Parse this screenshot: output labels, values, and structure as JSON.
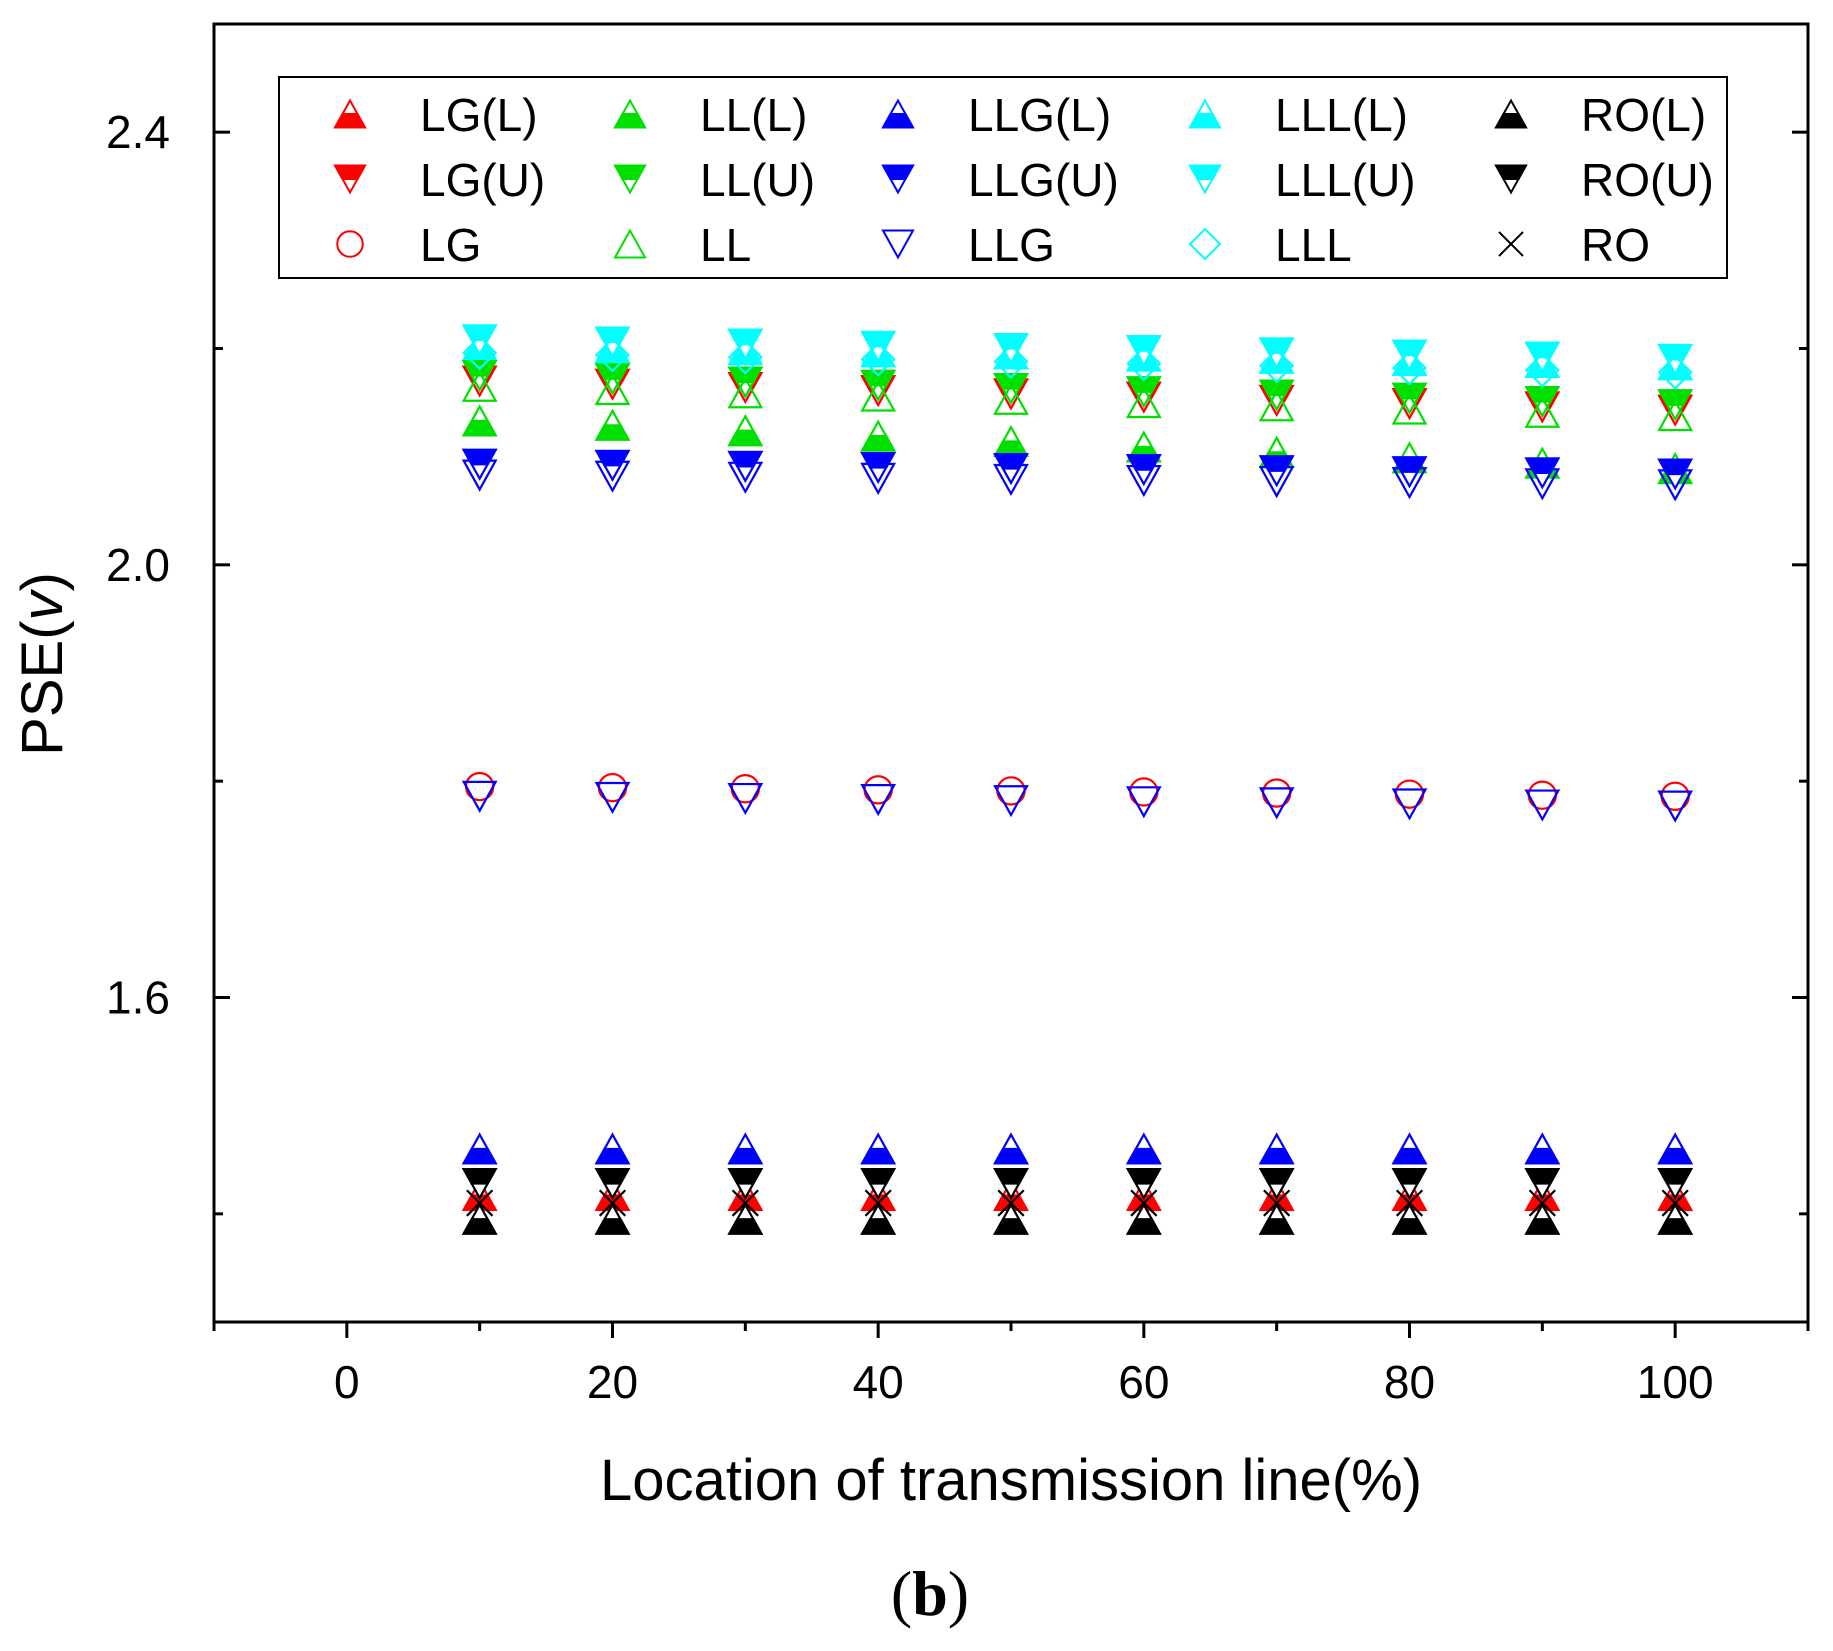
{
  "chart_data": {
    "type": "scatter",
    "title": "",
    "xlabel": "Location of transmission line(%)",
    "ylabel_text": "PSE(",
    "ylabel_italic": "v",
    "ylabel_close": ")",
    "panel_label_open": "(",
    "panel_label_bold": "b",
    "panel_label_close": ")",
    "xlim": [
      -10,
      110
    ],
    "ylim": [
      1.3,
      2.5
    ],
    "xticks": [
      0,
      20,
      40,
      60,
      80,
      100
    ],
    "xtick_labels": [
      "0",
      "20",
      "40",
      "60",
      "80",
      "100"
    ],
    "yticks": [
      1.6,
      2.0,
      2.4
    ],
    "ytick_labels": [
      "1.6",
      "2.0",
      "2.4"
    ],
    "grid": false,
    "legend_position": "top",
    "x": [
      10,
      20,
      30,
      40,
      50,
      60,
      70,
      80,
      90,
      100
    ],
    "series": [
      {
        "name": "LG(L)",
        "marker": "triangle-up-half",
        "color": "#ff0000",
        "values": [
          1.417,
          1.417,
          1.417,
          1.417,
          1.417,
          1.417,
          1.417,
          1.417,
          1.417,
          1.417
        ]
      },
      {
        "name": "LL(L)",
        "marker": "triangle-up-half",
        "color": "#00e000",
        "values": [
          2.133,
          2.129,
          2.124,
          2.119,
          2.114,
          2.109,
          2.104,
          2.099,
          2.094,
          2.089
        ]
      },
      {
        "name": "LLG(L)",
        "marker": "triangle-up-half",
        "color": "#0000ff",
        "values": [
          1.46,
          1.46,
          1.46,
          1.46,
          1.46,
          1.46,
          1.46,
          1.46,
          1.46,
          1.46
        ]
      },
      {
        "name": "LLL(L)",
        "marker": "triangle-up-half",
        "color": "#00ffff",
        "values": [
          2.203,
          2.201,
          2.199,
          2.197,
          2.195,
          2.193,
          2.191,
          2.189,
          2.187,
          2.185
        ]
      },
      {
        "name": "RO(L)",
        "marker": "triangle-up-half",
        "color": "#000000",
        "values": [
          1.395,
          1.395,
          1.395,
          1.395,
          1.395,
          1.395,
          1.395,
          1.395,
          1.395,
          1.395
        ]
      },
      {
        "name": "LG(U)",
        "marker": "triangle-down-half",
        "color": "#ff0000",
        "values": [
          2.17,
          2.167,
          2.164,
          2.161,
          2.158,
          2.155,
          2.152,
          2.149,
          2.146,
          2.143
        ]
      },
      {
        "name": "LL(U)",
        "marker": "triangle-down-half",
        "color": "#00e000",
        "values": [
          2.175,
          2.172,
          2.169,
          2.166,
          2.163,
          2.16,
          2.157,
          2.154,
          2.151,
          2.148
        ]
      },
      {
        "name": "LLG(U)",
        "marker": "triangle-down-half",
        "color": "#0000ff",
        "values": [
          2.093,
          2.092,
          2.091,
          2.09,
          2.089,
          2.088,
          2.087,
          2.086,
          2.085,
          2.084
        ]
      },
      {
        "name": "LLL(U)",
        "marker": "triangle-down-half",
        "color": "#00ffff",
        "values": [
          2.208,
          2.206,
          2.204,
          2.202,
          2.2,
          2.198,
          2.196,
          2.194,
          2.192,
          2.19
        ]
      },
      {
        "name": "RO(U)",
        "marker": "triangle-down-half",
        "color": "#000000",
        "values": [
          1.428,
          1.428,
          1.428,
          1.428,
          1.428,
          1.428,
          1.428,
          1.428,
          1.428,
          1.428
        ]
      },
      {
        "name": "LG",
        "marker": "circle-open",
        "color": "#ff0000",
        "values": [
          1.795,
          1.794,
          1.793,
          1.792,
          1.791,
          1.79,
          1.789,
          1.788,
          1.787,
          1.786
        ]
      },
      {
        "name": "LL",
        "marker": "triangle-up-open",
        "color": "#00e000",
        "values": [
          2.165,
          2.162,
          2.159,
          2.156,
          2.153,
          2.15,
          2.147,
          2.144,
          2.141,
          2.138
        ]
      },
      {
        "name": "LLG",
        "marker": "triangle-down-open",
        "color": "#0000ff",
        "values": [
          2.083,
          2.082,
          2.081,
          2.08,
          2.079,
          2.078,
          2.077,
          2.076,
          2.075,
          2.074
        ]
      },
      {
        "name": "LLL",
        "marker": "diamond-open",
        "color": "#00ffff",
        "values": [
          2.196,
          2.194,
          2.192,
          2.19,
          2.188,
          2.186,
          2.184,
          2.182,
          2.18,
          2.178
        ]
      },
      {
        "name": "RO",
        "marker": "cross",
        "color": "#000000",
        "values": [
          1.41,
          1.41,
          1.41,
          1.41,
          1.41,
          1.41,
          1.41,
          1.41,
          1.41,
          1.41
        ]
      },
      {
        "name": "LLG",
        "legend": false,
        "marker": "triangle-down-open",
        "color": "#0000ff",
        "values": [
          1.786,
          1.785,
          1.784,
          1.783,
          1.782,
          1.781,
          1.78,
          1.779,
          1.778,
          1.777
        ]
      }
    ],
    "legend": [
      {
        "label": "LG(L)",
        "marker": "triangle-up-half",
        "color": "#ff0000"
      },
      {
        "label": "LL(L)",
        "marker": "triangle-up-half",
        "color": "#00e000"
      },
      {
        "label": "LLG(L)",
        "marker": "triangle-up-half",
        "color": "#0000ff"
      },
      {
        "label": "LLL(L)",
        "marker": "triangle-up-half",
        "color": "#00ffff"
      },
      {
        "label": "RO(L)",
        "marker": "triangle-up-half",
        "color": "#000000"
      },
      {
        "label": "LG(U)",
        "marker": "triangle-down-half",
        "color": "#ff0000"
      },
      {
        "label": "LL(U)",
        "marker": "triangle-down-half",
        "color": "#00e000"
      },
      {
        "label": "LLG(U)",
        "marker": "triangle-down-half",
        "color": "#0000ff"
      },
      {
        "label": "LLL(U)",
        "marker": "triangle-down-half",
        "color": "#00ffff"
      },
      {
        "label": "RO(U)",
        "marker": "triangle-down-half",
        "color": "#000000"
      },
      {
        "label": "LG",
        "marker": "circle-open",
        "color": "#ff0000"
      },
      {
        "label": "LL",
        "marker": "triangle-up-open",
        "color": "#00e000"
      },
      {
        "label": "LLG",
        "marker": "triangle-down-open",
        "color": "#0000ff"
      },
      {
        "label": "LLL",
        "marker": "diamond-open",
        "color": "#00ffff"
      },
      {
        "label": "RO",
        "marker": "cross",
        "color": "#000000"
      }
    ]
  }
}
